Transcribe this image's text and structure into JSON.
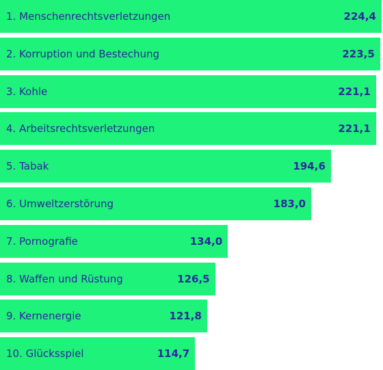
{
  "chart_data": {
    "type": "bar",
    "orientation": "horizontal",
    "categories": [
      "1. Menschenrechtsverletzungen",
      "2. Korruption und Bestechung",
      "3. Kohle",
      "4. Arbeitsrechtsverletzungen",
      "5. Tabak",
      "6. Umweltzerstörung",
      "7. Pornografie",
      "8. Waffen und Rüstung",
      "9. Kernenergie",
      "10. Glücksspiel"
    ],
    "values": [
      224.4,
      223.5,
      221.1,
      221.1,
      194.6,
      183.0,
      134.0,
      126.5,
      121.8,
      114.7
    ],
    "value_labels": [
      "224,4",
      "223,5",
      "221,1",
      "221,1",
      "194,6",
      "183,0",
      "134,0",
      "126,5",
      "121,8",
      "114,7"
    ],
    "grid": false,
    "legend": "none",
    "colors": {
      "bar": "#1ef27a",
      "text": "#2a2a9a",
      "background": "#ffffff"
    }
  }
}
